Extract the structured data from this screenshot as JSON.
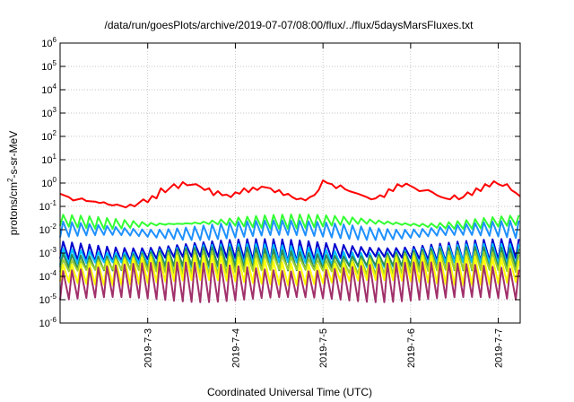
{
  "chart_data": {
    "type": "line",
    "title": "/data/run/goesPlots/archive/2019-07-07/08:00/flux/../flux/5daysMarsFluxes.txt",
    "xlabel": "Coordinated Universal Time (UTC)",
    "ylabel_parts": {
      "pre": "protons/cm",
      "sup": "2",
      "post": "-s-sr-MeV"
    },
    "x_range_days": [
      0.0,
      5.25
    ],
    "x_ticks": [
      {
        "day": 1,
        "label": "2019-7-3"
      },
      {
        "day": 2,
        "label": "2019-7-4"
      },
      {
        "day": 3,
        "label": "2019-7-5"
      },
      {
        "day": 4,
        "label": "2019-7-6"
      },
      {
        "day": 5,
        "label": "2019-7-7"
      }
    ],
    "y_scale": "log",
    "y_range": [
      1e-06,
      1000000.0
    ],
    "y_ticks": [
      {
        "value": 1e-06,
        "base": "10",
        "exp": "-6"
      },
      {
        "value": 1e-05,
        "base": "10",
        "exp": "-5"
      },
      {
        "value": 0.0001,
        "base": "10",
        "exp": "-4"
      },
      {
        "value": 0.001,
        "base": "10",
        "exp": "-3"
      },
      {
        "value": 0.01,
        "base": "10",
        "exp": "-2"
      },
      {
        "value": 0.1,
        "base": "10",
        "exp": "-1"
      },
      {
        "value": 1.0,
        "base": "10",
        "exp": "0"
      },
      {
        "value": 10.0,
        "base": "10",
        "exp": "1"
      },
      {
        "value": 100.0,
        "base": "10",
        "exp": "2"
      },
      {
        "value": 1000.0,
        "base": "10",
        "exp": "3"
      },
      {
        "value": 10000.0,
        "base": "10",
        "exp": "4"
      },
      {
        "value": 100000.0,
        "base": "10",
        "exp": "5"
      },
      {
        "value": 1000000.0,
        "base": "10",
        "exp": "6"
      }
    ],
    "grid": true,
    "series": [
      {
        "color": "#ff0000",
        "points": [
          [
            0.0,
            0.35
          ],
          [
            0.1,
            0.25
          ],
          [
            0.15,
            0.18
          ],
          [
            0.25,
            0.22
          ],
          [
            0.3,
            0.17
          ],
          [
            0.4,
            0.16
          ],
          [
            0.45,
            0.14
          ],
          [
            0.5,
            0.15
          ],
          [
            0.55,
            0.12
          ],
          [
            0.6,
            0.11
          ],
          [
            0.65,
            0.12
          ],
          [
            0.75,
            0.09
          ],
          [
            0.8,
            0.12
          ],
          [
            0.85,
            0.1
          ],
          [
            0.95,
            0.2
          ],
          [
            1.0,
            0.15
          ],
          [
            1.05,
            0.28
          ],
          [
            1.1,
            0.22
          ],
          [
            1.15,
            0.6
          ],
          [
            1.2,
            0.4
          ],
          [
            1.3,
            0.9
          ],
          [
            1.35,
            0.6
          ],
          [
            1.4,
            1.1
          ],
          [
            1.45,
            0.8
          ],
          [
            1.55,
            0.9
          ],
          [
            1.6,
            0.7
          ],
          [
            1.65,
            0.5
          ],
          [
            1.7,
            0.6
          ],
          [
            1.75,
            0.3
          ],
          [
            1.8,
            0.45
          ],
          [
            1.85,
            0.3
          ],
          [
            1.9,
            0.32
          ],
          [
            1.95,
            0.25
          ],
          [
            2.0,
            0.4
          ],
          [
            2.05,
            0.35
          ],
          [
            2.1,
            0.6
          ],
          [
            2.15,
            0.4
          ],
          [
            2.2,
            0.65
          ],
          [
            2.25,
            0.5
          ],
          [
            2.3,
            0.7
          ],
          [
            2.4,
            0.6
          ],
          [
            2.45,
            0.4
          ],
          [
            2.5,
            0.5
          ],
          [
            2.55,
            0.3
          ],
          [
            2.6,
            0.35
          ],
          [
            2.65,
            0.25
          ],
          [
            2.7,
            0.2
          ],
          [
            2.75,
            0.22
          ],
          [
            2.8,
            0.18
          ],
          [
            2.85,
            0.25
          ],
          [
            2.9,
            0.3
          ],
          [
            2.95,
            0.5
          ],
          [
            3.0,
            1.3
          ],
          [
            3.05,
            1.0
          ],
          [
            3.1,
            0.9
          ],
          [
            3.15,
            0.6
          ],
          [
            3.2,
            0.8
          ],
          [
            3.25,
            0.55
          ],
          [
            3.3,
            0.45
          ],
          [
            3.4,
            0.35
          ],
          [
            3.5,
            0.25
          ],
          [
            3.55,
            0.2
          ],
          [
            3.6,
            0.22
          ],
          [
            3.65,
            0.3
          ],
          [
            3.7,
            0.25
          ],
          [
            3.75,
            0.55
          ],
          [
            3.8,
            0.45
          ],
          [
            3.85,
            0.9
          ],
          [
            3.9,
            0.7
          ],
          [
            3.95,
            0.95
          ],
          [
            4.0,
            0.75
          ],
          [
            4.05,
            0.6
          ],
          [
            4.1,
            0.45
          ],
          [
            4.2,
            0.5
          ],
          [
            4.25,
            0.4
          ],
          [
            4.3,
            0.3
          ],
          [
            4.35,
            0.25
          ],
          [
            4.4,
            0.22
          ],
          [
            4.45,
            0.2
          ],
          [
            4.5,
            0.3
          ],
          [
            4.55,
            0.2
          ],
          [
            4.6,
            0.25
          ],
          [
            4.65,
            0.4
          ],
          [
            4.7,
            0.3
          ],
          [
            4.75,
            0.6
          ],
          [
            4.8,
            0.45
          ],
          [
            4.85,
            0.9
          ],
          [
            4.9,
            0.7
          ],
          [
            4.95,
            1.2
          ],
          [
            5.0,
            0.9
          ],
          [
            5.05,
            0.75
          ],
          [
            5.1,
            0.9
          ],
          [
            5.15,
            0.5
          ],
          [
            5.2,
            0.38
          ],
          [
            5.25,
            0.27
          ]
        ]
      },
      {
        "color": "#33ff33",
        "base": 0.025,
        "low": 0.018,
        "high": 0.045
      },
      {
        "color": "#1e90ff",
        "base": 0.012,
        "low": 0.006,
        "high": 0.025
      },
      {
        "color": "#0000cd",
        "base": 0.0015,
        "low": 0.0007,
        "high": 0.004
      },
      {
        "color": "#00bfff",
        "base": 0.0009,
        "low": 0.0004,
        "high": 0.0025
      },
      {
        "color": "#2e8b57",
        "base": 0.0007,
        "low": 0.0003,
        "high": 0.0018
      },
      {
        "color": "#9acd32",
        "base": 0.0005,
        "low": 0.0002,
        "high": 0.0012
      },
      {
        "color": "#ffff00",
        "base": 0.0002,
        "low": 7e-05,
        "high": 0.0008
      },
      {
        "color": "#a0306a",
        "base": 5e-05,
        "low": 1.3e-05,
        "high": 0.0004
      }
    ]
  }
}
